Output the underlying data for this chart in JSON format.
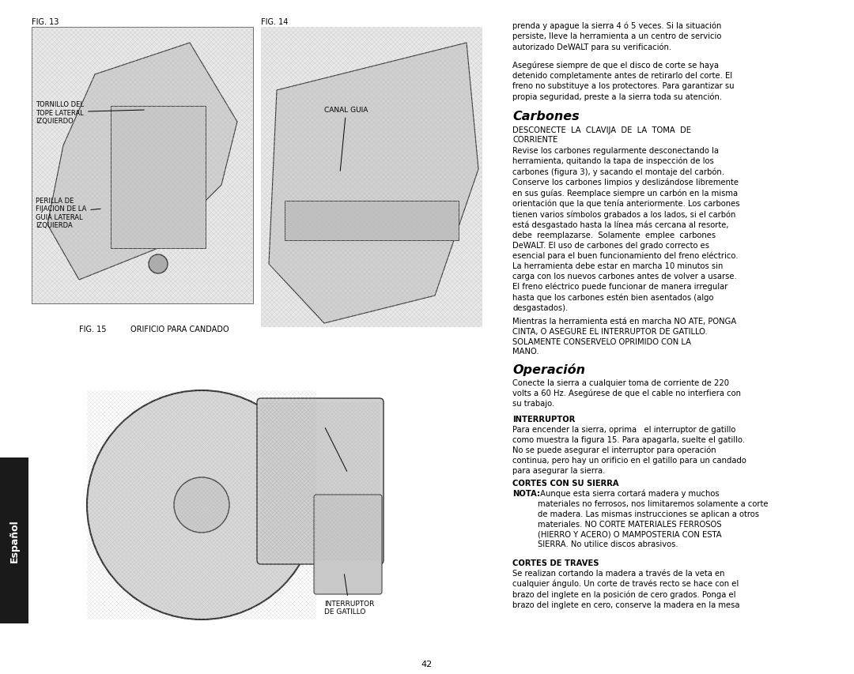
{
  "bg_color": "#ffffff",
  "page_num": "42",
  "sidebar_color": "#1a1a1a",
  "sidebar_text": "Español",
  "sidebar_text_color": "#ffffff",
  "fig13_label": "FIG. 13",
  "fig14_label": "FIG. 14",
  "fig15_label": "FIG. 15",
  "fig15_candado": "ORIFICIO PARA CANDADO",
  "fig13_ann1": "TORNILLO DEL\nTOPE LATERAL\nIZQUIERDO",
  "fig13_ann2": "PERILLA DE\nFIJACION DE LA\nGUIA LATERAL\nIZQUIERDA",
  "fig14_ann": "CANAL GUIA",
  "fig15_ann": "INTERRUPTOR\nDE GATILLO",
  "section_carbones_title": "Carbones",
  "section_operacion_title": "Operación",
  "subsection_interruptor": "INTERRUPTOR",
  "subsection_cortes_sierra": "CORTES CON SU SIERRA",
  "subsection_cortes_traves": "CORTES DE TRAVES",
  "text_intro": "prenda y apague la sierra 4 ó 5 veces. Si la situación\npersiste, lleve la herramienta a un centro de servicio\nautorizado DeWALT para su verificación.",
  "text_intro2": "Asegúrese siempre de que el disco de corte se haya\ndetenido completamente antes de retirarlo del corte. El\nfreno no substituye a los protectores. Para garantizar su\npropia seguridad, preste a la sierra toda su atención.",
  "text_desconecte": "DESCONECTE  LA  CLAVIJA  DE  LA  TOMA  DE\nCORRIENTE",
  "text_carbones_body": "Revise los carbones regularmente desconectando la\nherramienta, quitando la tapa de inspección de los\ncarbones (figura 3), y sacando el montaje del carbón.\nConserve los carbones limpios y deslizándose libremente\nen sus guías. Reemplace siempre un carbón en la misma\norientación que la que tenía anteriormente. Los carbones\ntienen varios símbolos grabados a los lados, si el carbón\nestá desgastado hasta la línea más cercana al resorte,\ndebe  reemplazarse.  Solamente  emplee  carbones\nDeWALT. El uso de carbones del grado correcto es\nesencial para el buen funcionamiento del freno eléctrico.\nLa herramienta debe estar en marcha 10 minutos sin\ncarga con los nuevos carbones antes de volver a usarse.\nEl freno eléctrico puede funcionar de manera irregular\nhasta que los carbones estén bien asentados (algo\ndesgastados).",
  "text_warning": "Mientras la herramienta está en marcha NO ATE, PONGA\nCINTA, O ASEGURE EL INTERRUPTOR DE GATILLO.\nSOLAMENTE CONSERVELO OPRIMIDO CON LA\nMANO.",
  "text_operacion_body": "Conecte la sierra a cualquier toma de corriente de 220\nvolts a 60 Hz. Asegúrese de que el cable no interfiera con\nsu trabajo.",
  "text_interruptor_body": "Para encender la sierra, oprima   el interruptor de gatillo\ncomo muestra la figura 15. Para apagarla, suelte el gatillo.\nNo se puede asegurar el interruptor para operación\ncontinua, pero hay un orificio en el gatillo para un candado\npara asegurar la sierra.",
  "text_cortes_sierra_nota": "NOTA:",
  "text_cortes_sierra_body": " Aunque esta sierra cortará madera y muchos\nmateriales no ferrosos, nos limitaremos solamente a corte\nde madera. Las mismas instrucciones se aplican a otros\nmateriales. NO CORTE MATERIALES FERROSOS\n(HIERRO Y ACERO) O MAMPOSTERIA CON ESTA\nSIERRA. No utilice discos abrasivos.",
  "text_cortes_traves_body": "Se realizan cortando la madera a través de la veta en\ncualquier ángulo. Un corte de través recto se hace con el\nbrazo del inglete en la posición de cero grados. Ponga el\nbrazo del inglete en cero, conserve la madera en la mesa"
}
